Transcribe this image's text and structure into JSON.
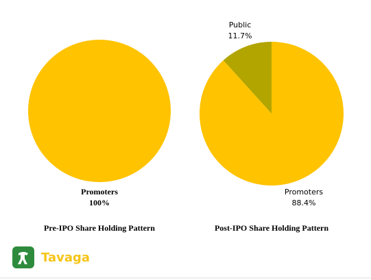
{
  "chart_data": [
    {
      "type": "pie",
      "title": "Pre-IPO Share Holding Pattern",
      "categories": [
        "Promoters"
      ],
      "values": [
        100
      ],
      "value_labels": [
        "100%"
      ],
      "colors": [
        "#ffc300"
      ]
    },
    {
      "type": "pie",
      "title": "Post-IPO Share Holding Pattern",
      "categories": [
        "Public",
        "Promoters"
      ],
      "values": [
        11.7,
        88.4
      ],
      "value_labels": [
        "11.7%",
        "88.4%"
      ],
      "colors": [
        "#b3a500",
        "#ffc300"
      ]
    }
  ],
  "brand": "Tavaga"
}
